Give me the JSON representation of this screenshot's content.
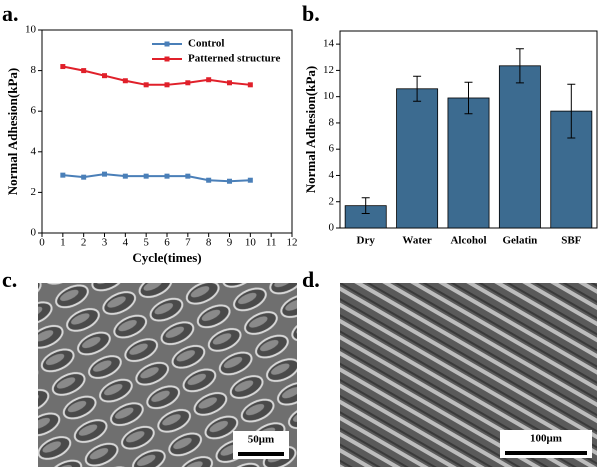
{
  "chart_data": [
    {
      "type": "line",
      "x": [
        1,
        2,
        3,
        4,
        5,
        6,
        7,
        8,
        9,
        10
      ],
      "series": [
        {
          "name": "Control",
          "color": "#4a7fb8",
          "values": [
            2.85,
            2.75,
            2.9,
            2.8,
            2.8,
            2.8,
            2.8,
            2.6,
            2.55,
            2.6
          ]
        },
        {
          "name": "Patterned structure",
          "color": "#e0202a",
          "values": [
            8.2,
            8.0,
            7.75,
            7.5,
            7.3,
            7.3,
            7.4,
            7.55,
            7.4,
            7.3
          ]
        }
      ],
      "xlabel": "Cycle(times)",
      "ylabel": "Normal Adhesion(kPa)",
      "xlim": [
        0,
        12
      ],
      "xticks": [
        0,
        1,
        2,
        3,
        4,
        5,
        6,
        7,
        8,
        9,
        10,
        11,
        12
      ],
      "ylim": [
        0,
        10
      ],
      "yticks": [
        0,
        2,
        4,
        6,
        8,
        10
      ],
      "legend": "upper right"
    },
    {
      "type": "bar",
      "categories": [
        "Dry",
        "Water",
        "Alcohol",
        "Gelatin",
        "SBF"
      ],
      "values": [
        1.7,
        10.6,
        9.9,
        12.35,
        8.9
      ],
      "errors": [
        0.6,
        0.95,
        1.2,
        1.3,
        2.05
      ],
      "color": "#3c6b90",
      "ylabel": "Normal Adhesion(kPa)",
      "ylim": [
        0,
        15
      ],
      "yticks": [
        0,
        2,
        4,
        6,
        8,
        10,
        12,
        14
      ]
    }
  ],
  "panels": {
    "a": "a.",
    "b": "b.",
    "c": "c.",
    "d": "d.",
    "c_scale": "50μm",
    "d_scale": "100μm"
  }
}
